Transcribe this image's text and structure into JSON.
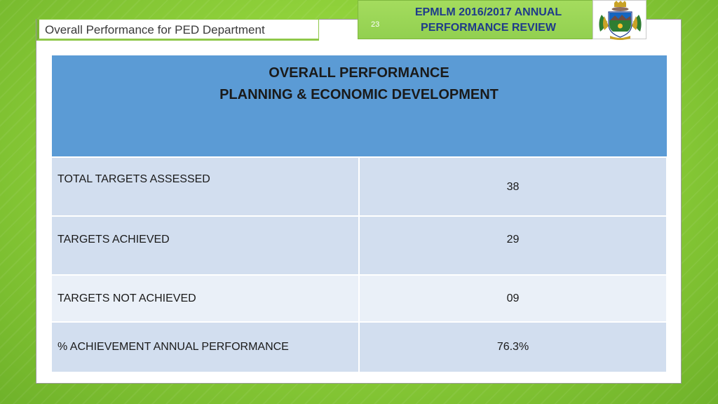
{
  "slide": {
    "department_title": "Overall Performance for PED Department",
    "slide_number": "23",
    "banner_line1": "EPMLM 2016/2017 ANNUAL",
    "banner_line2": "PERFORMANCE REVIEW",
    "crest_icon": "municipal-crest-icon"
  },
  "table": {
    "heading_line1": "OVERALL PERFORMANCE",
    "heading_line2": "PLANNING & ECONOMIC DEVELOPMENT",
    "rows": [
      {
        "label": "TOTAL TARGETS ASSESSED",
        "value": "38"
      },
      {
        "label": "TARGETS ACHIEVED",
        "value": "29"
      },
      {
        "label": "TARGETS NOT ACHIEVED",
        "value": "09"
      },
      {
        "label": "% ACHIEVEMENT ANNUAL PERFORMANCE",
        "value": "76.3%"
      }
    ]
  },
  "colors": {
    "background_green": "#92d050",
    "header_blue": "#5b9bd5",
    "row_band_dark": "#d2deef",
    "row_band_light": "#eaf0f8",
    "banner_text": "#1f3b8a"
  }
}
